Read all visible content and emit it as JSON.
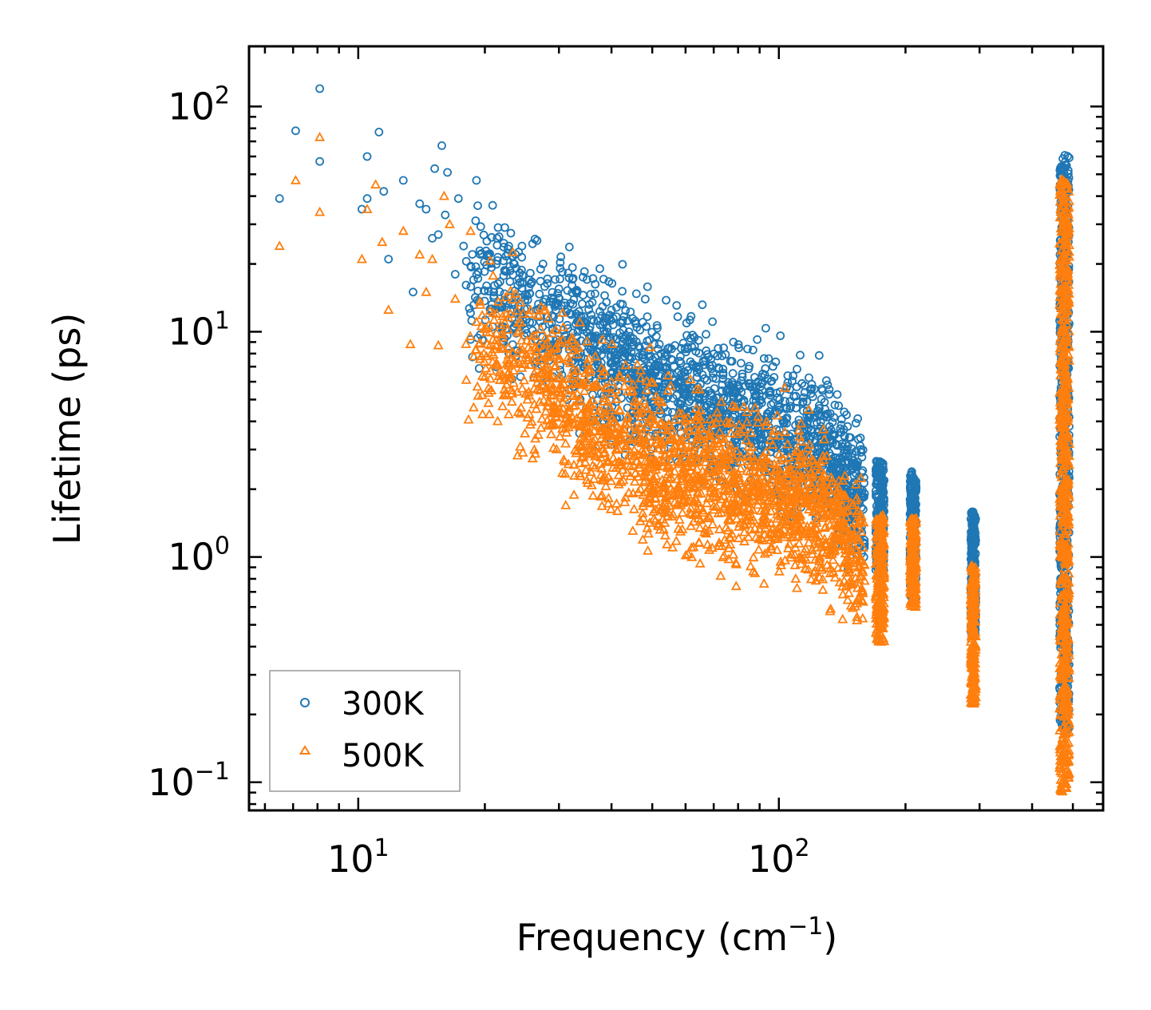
{
  "chart_data": {
    "type": "scatter",
    "title": "",
    "xlabel": {
      "main": "Frequency (cm",
      "sup": "−1",
      "close": ")"
    },
    "ylabel": "Lifetime (ps)",
    "xscale": "log",
    "yscale": "log",
    "xlim": [
      5.5,
      590
    ],
    "ylim": [
      0.075,
      185
    ],
    "x_ticks": [
      {
        "value": 10,
        "base": "10",
        "exp": "1"
      },
      {
        "value": 100,
        "base": "10",
        "exp": "2"
      }
    ],
    "y_ticks": [
      {
        "value": 0.1,
        "base": "10",
        "exp": "−1"
      },
      {
        "value": 1,
        "base": "10",
        "exp": "0"
      },
      {
        "value": 10,
        "base": "10",
        "exp": "1"
      },
      {
        "value": 100,
        "base": "10",
        "exp": "2"
      }
    ],
    "legend_position": "bottom-left",
    "series": [
      {
        "name": "300K",
        "marker": "circle",
        "color": "#1f77b4",
        "seed_points": [
          [
            6.5,
            39
          ],
          [
            7.1,
            78
          ],
          [
            8.1,
            120
          ],
          [
            8.1,
            57
          ],
          [
            10.5,
            60
          ],
          [
            10.5,
            39
          ],
          [
            10.2,
            35
          ],
          [
            11.2,
            77
          ],
          [
            11.5,
            42
          ],
          [
            11.8,
            21
          ],
          [
            12.8,
            47
          ],
          [
            13.5,
            15
          ],
          [
            14,
            37
          ],
          [
            14.5,
            35
          ],
          [
            15,
            26
          ],
          [
            15.2,
            53
          ],
          [
            15.5,
            27
          ],
          [
            15.8,
            67
          ],
          [
            16.1,
            33
          ],
          [
            16.3,
            51
          ],
          [
            17,
            18
          ],
          [
            17.3,
            39
          ],
          [
            17.8,
            24
          ],
          [
            19.1,
            47
          ],
          [
            19.5,
            9.7
          ],
          [
            20.3,
            22
          ],
          [
            21,
            15
          ],
          [
            21.5,
            29
          ],
          [
            22.3,
            29
          ],
          [
            22.8,
            24
          ],
          [
            23.5,
            20
          ],
          [
            24.5,
            24
          ],
          [
            25.5,
            17
          ],
          [
            27.5,
            20
          ],
          [
            30,
            15.5
          ],
          [
            33,
            15
          ],
          [
            36,
            13.5
          ],
          [
            40,
            12.5
          ],
          [
            44,
            10
          ],
          [
            52,
            8.8
          ],
          [
            55,
            6.5
          ],
          [
            60,
            5.3
          ],
          [
            70,
            5.0
          ],
          [
            78,
            5.1
          ],
          [
            90,
            4.1
          ]
        ],
        "trend": [
          [
            18,
            17
          ],
          [
            25,
            13
          ],
          [
            35,
            8.5
          ],
          [
            50,
            6
          ],
          [
            70,
            4.6
          ],
          [
            100,
            3.6
          ],
          [
            130,
            3.2
          ],
          [
            160,
            1.6
          ]
        ],
        "spread": 0.28,
        "clusters": [
          {
            "x": [
              170,
              178
            ],
            "y": [
              0.85,
              2.7
            ]
          },
          {
            "x": [
              205,
              212
            ],
            "y": [
              0.65,
              2.45
            ]
          },
          {
            "x": [
              286,
              294
            ],
            "y": [
              0.45,
              1.6
            ]
          },
          {
            "x": [
              465,
              490
            ],
            "y": [
              0.17,
              63
            ]
          }
        ]
      },
      {
        "name": "500K",
        "marker": "triangle",
        "color": "#ff7f0e",
        "seed_points": [
          [
            6.5,
            24
          ],
          [
            7.1,
            47
          ],
          [
            8.1,
            73
          ],
          [
            8.1,
            34
          ],
          [
            10.2,
            21
          ],
          [
            10.5,
            35
          ],
          [
            11,
            45
          ],
          [
            11.4,
            25
          ],
          [
            11.8,
            12.5
          ],
          [
            12.8,
            28
          ],
          [
            13.3,
            8.8
          ],
          [
            14,
            22
          ],
          [
            14.5,
            15
          ],
          [
            15,
            21
          ],
          [
            15.5,
            8.7
          ],
          [
            16,
            40
          ],
          [
            16.5,
            30
          ],
          [
            17,
            14
          ],
          [
            18.5,
            28
          ],
          [
            19.2,
            5.7
          ],
          [
            20.5,
            4.3
          ],
          [
            21.5,
            7.1
          ],
          [
            22.5,
            12
          ],
          [
            24,
            4.4
          ],
          [
            26,
            7.5
          ],
          [
            30,
            6.2
          ],
          [
            40,
            6.0
          ],
          [
            52,
            4.5
          ],
          [
            60,
            3.5
          ],
          [
            75,
            2.6
          ],
          [
            90,
            2.2
          ],
          [
            120,
            2.7
          ]
        ],
        "trend": [
          [
            18,
            9
          ],
          [
            25,
            7
          ],
          [
            35,
            4
          ],
          [
            50,
            2.7
          ],
          [
            70,
            2.2
          ],
          [
            100,
            1.8
          ],
          [
            130,
            1.5
          ],
          [
            160,
            0.9
          ]
        ],
        "spread": 0.3,
        "clusters": [
          {
            "x": [
              170,
              178
            ],
            "y": [
              0.42,
              1.55
            ]
          },
          {
            "x": [
              205,
              212
            ],
            "y": [
              0.6,
              1.5
            ]
          },
          {
            "x": [
              286,
              294
            ],
            "y": [
              0.22,
              0.95
            ]
          },
          {
            "x": [
              465,
              490
            ],
            "y": [
              0.09,
              48
            ]
          }
        ]
      }
    ]
  }
}
